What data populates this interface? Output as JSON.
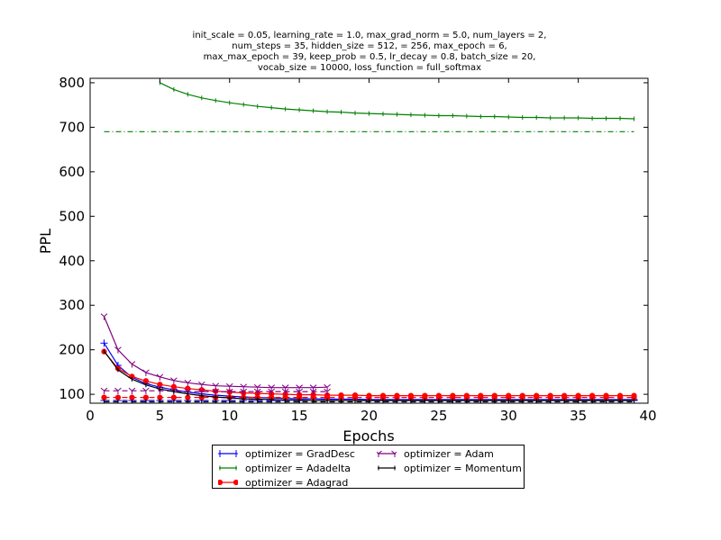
{
  "chart_data": {
    "type": "line",
    "title": "init_scale = 0.05, learning_rate = 1.0, max_grad_norm = 5.0, num_layers = 2,\nnum_steps = 35, hidden_size = 512,    = 256, max_epoch = 6,\nmax_max_epoch = 39, keep_prob = 0.5, lr_decay = 0.8, batch_size = 20,\nvocab_size = 10000, loss_function = full_softmax",
    "xlabel": "Epochs",
    "ylabel": "PPL",
    "xlim": [
      0,
      40
    ],
    "ylim": [
      80,
      810
    ],
    "xticks": [
      "0",
      "5",
      "10",
      "15",
      "20",
      "25",
      "30",
      "35",
      "40"
    ],
    "yticks": [
      "100",
      "200",
      "300",
      "400",
      "500",
      "600",
      "700",
      "800"
    ],
    "legend_position": "below",
    "series": [
      {
        "name": "optimizer = GradDesc",
        "color": "#0000ff",
        "marker": "plus",
        "x": [
          1,
          2,
          3,
          4,
          5,
          6,
          7,
          8,
          9,
          10,
          11,
          12,
          13,
          14,
          15,
          16,
          17,
          18,
          19,
          20,
          21,
          22,
          23,
          24,
          25,
          26,
          27,
          28,
          29,
          30,
          31,
          32,
          33,
          34,
          35,
          36,
          37,
          38,
          39
        ],
        "train": [
          215,
          165,
          138,
          124,
          116,
          110,
          105,
          101,
          98,
          96,
          94,
          93,
          92,
          91,
          90,
          90,
          89,
          89,
          89,
          88,
          88,
          88,
          88,
          88,
          88,
          88,
          88,
          88,
          88,
          88,
          88,
          88,
          88,
          88,
          88,
          88,
          88,
          88,
          88
        ],
        "valid": [
          86,
          86,
          86,
          86,
          86,
          86,
          86,
          86,
          86,
          86,
          86,
          86,
          86,
          86,
          86,
          86,
          86,
          86,
          86,
          86,
          86,
          86,
          86,
          86,
          86,
          86,
          86,
          86,
          86,
          86,
          86,
          86,
          86,
          86,
          86,
          86,
          86,
          86,
          86
        ]
      },
      {
        "name": "optimizer = Adadelta",
        "color": "#008000",
        "marker": "tick",
        "x": [
          5,
          6,
          7,
          8,
          9,
          10,
          11,
          12,
          13,
          14,
          15,
          16,
          17,
          18,
          19,
          20,
          21,
          22,
          23,
          24,
          25,
          26,
          27,
          28,
          29,
          30,
          31,
          32,
          33,
          34,
          35,
          36,
          37,
          38,
          39
        ],
        "train": [
          800,
          785,
          774,
          766,
          760,
          755,
          751,
          747,
          744,
          741,
          739,
          737,
          735,
          734,
          732,
          731,
          730,
          729,
          728,
          727,
          726,
          726,
          725,
          724,
          724,
          723,
          722,
          722,
          721,
          721,
          721,
          720,
          720,
          720,
          719
        ],
        "valid_x": [
          1,
          39
        ],
        "valid": [
          690,
          690
        ]
      },
      {
        "name": "optimizer = Adagrad",
        "color": "#ff0000",
        "marker": "dot",
        "x": [
          1,
          2,
          3,
          4,
          5,
          6,
          7,
          8,
          9,
          10,
          11,
          12,
          13,
          14,
          15,
          16,
          17,
          18,
          19,
          20,
          21,
          22,
          23,
          24,
          25,
          26,
          27,
          28,
          29,
          30,
          31,
          32,
          33,
          34,
          35,
          36,
          37,
          38,
          39
        ],
        "train": [
          196,
          158,
          140,
          130,
          122,
          117,
          113,
          110,
          107,
          105,
          103,
          102,
          101,
          100,
          99,
          99,
          98,
          98,
          98,
          97,
          97,
          97,
          97,
          97,
          97,
          97,
          97,
          97,
          97,
          97,
          97,
          97,
          97,
          97,
          97,
          97,
          97,
          97,
          97
        ],
        "valid": [
          93,
          93,
          93,
          93,
          93,
          93,
          93,
          93,
          93,
          93,
          93,
          93,
          93,
          93,
          93,
          93,
          93,
          93,
          93,
          93,
          93,
          93,
          93,
          93,
          93,
          93,
          93,
          93,
          93,
          93,
          93,
          93,
          93,
          93,
          93,
          93,
          93,
          93,
          93
        ]
      },
      {
        "name": "optimizer = Adam",
        "color": "#800080",
        "marker": "tri",
        "x": [
          1,
          2,
          3,
          4,
          5,
          6,
          7,
          8,
          9,
          10,
          11,
          12,
          13,
          14,
          15,
          16,
          17
        ],
        "train": [
          275,
          200,
          168,
          149,
          139,
          131,
          126,
          122,
          119,
          118,
          117,
          116,
          115,
          115,
          115,
          115,
          116
        ],
        "valid": [
          108,
          108,
          108,
          108,
          108,
          107,
          106,
          106,
          106,
          106,
          106,
          106,
          106,
          106,
          106,
          106,
          106
        ]
      },
      {
        "name": "optimizer = Momentum",
        "color": "#000000",
        "marker": "tick",
        "x": [
          1,
          2,
          3,
          4,
          5,
          6,
          7,
          8,
          9,
          10,
          11,
          12,
          13,
          14,
          15,
          16,
          17,
          18,
          19,
          20,
          21,
          22,
          23,
          24,
          25,
          26,
          27,
          28,
          29,
          30,
          31,
          32,
          33,
          34,
          35,
          36,
          37,
          38,
          39
        ],
        "train": [
          197,
          155,
          134,
          121,
          112,
          106,
          101,
          97,
          94,
          92,
          90,
          89,
          88,
          87,
          87,
          86,
          86,
          86,
          86,
          86,
          86,
          86,
          86,
          86,
          86,
          86,
          86,
          86,
          86,
          86,
          86,
          86,
          86,
          86,
          86,
          86,
          86,
          86,
          86
        ],
        "valid": [
          83,
          83,
          83,
          83,
          83,
          83,
          83,
          83,
          83,
          83,
          83,
          83,
          83,
          83,
          83,
          83,
          83,
          83,
          83,
          83,
          83,
          83,
          83,
          83,
          83,
          83,
          83,
          83,
          83,
          83,
          83,
          83,
          83,
          83,
          83,
          83,
          83,
          83,
          83
        ]
      }
    ]
  }
}
